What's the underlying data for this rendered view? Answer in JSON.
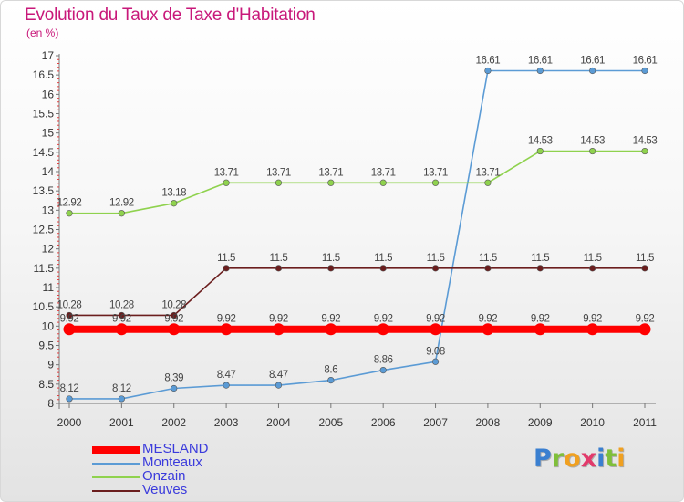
{
  "header": {
    "title": "Evolution du Taux de Taxe d'Habitation",
    "subtitle": "(en %)"
  },
  "chart_data": {
    "type": "line",
    "x": [
      "2000",
      "2001",
      "2002",
      "2003",
      "2004",
      "2005",
      "2006",
      "2007",
      "2008",
      "2009",
      "2010",
      "2011"
    ],
    "ylim": [
      8,
      17
    ],
    "yticks": [
      8,
      8.5,
      9,
      9.5,
      10,
      10.5,
      11,
      11.5,
      12,
      12.5,
      13,
      13.5,
      14,
      14.5,
      15,
      15.5,
      16,
      16.5,
      17
    ],
    "ytick_labels": [
      "8",
      "8.5",
      "9",
      "9.5",
      "10",
      "10.5",
      "11",
      "11.5",
      "12",
      "12.5",
      "13",
      "13.5",
      "14",
      "14.5",
      "15",
      "15.5",
      "16",
      "16.5",
      "17"
    ],
    "grid": false,
    "legend_position": "bottom-left",
    "series": [
      {
        "name": "MESLAND",
        "color": "#ff0000",
        "thick": true,
        "values": [
          9.92,
          9.92,
          9.92,
          9.92,
          9.92,
          9.92,
          9.92,
          9.92,
          9.92,
          9.92,
          9.92,
          9.92
        ],
        "labels": [
          "9.92",
          "9.92",
          "9.92",
          "9.92",
          "9.92",
          "9.92",
          "9.92",
          "9.92",
          "9.92",
          "9.92",
          "9.92",
          "9.92"
        ]
      },
      {
        "name": "Monteaux",
        "color": "#5b9bd5",
        "thick": false,
        "values": [
          8.12,
          8.12,
          8.39,
          8.47,
          8.47,
          8.6,
          8.86,
          9.08,
          16.61,
          16.61,
          16.61,
          16.61
        ],
        "labels": [
          "8.12",
          "8.12",
          "8.39",
          "8.47",
          "8.47",
          "8.6",
          "8.86",
          "9.08",
          "16.61",
          "16.61",
          "16.61",
          "16.61"
        ]
      },
      {
        "name": "Onzain",
        "color": "#8fd24e",
        "thick": false,
        "values": [
          12.92,
          12.92,
          13.18,
          13.71,
          13.71,
          13.71,
          13.71,
          13.71,
          13.71,
          14.53,
          14.53,
          14.53
        ],
        "labels": [
          "12.92",
          "12.92",
          "13.18",
          "13.71",
          "13.71",
          "13.71",
          "13.71",
          "13.71",
          "13.71",
          "14.53",
          "14.53",
          "14.53"
        ]
      },
      {
        "name": "Veuves",
        "color": "#6b1e1e",
        "thick": false,
        "values": [
          10.28,
          10.28,
          10.28,
          11.5,
          11.5,
          11.5,
          11.5,
          11.5,
          11.5,
          11.5,
          11.5,
          11.5
        ],
        "labels": [
          "10.28",
          "10.28",
          "10.28",
          "11.5",
          "11.5",
          "11.5",
          "11.5",
          "11.5",
          "11.5",
          "11.5",
          "11.5",
          "11.5"
        ]
      }
    ]
  },
  "legend": {
    "items": [
      {
        "label": "MESLAND",
        "color": "#ff0000",
        "thick": true
      },
      {
        "label": "Monteaux",
        "color": "#5b9bd5",
        "thick": false
      },
      {
        "label": "Onzain",
        "color": "#8fd24e",
        "thick": false
      },
      {
        "label": "Veuves",
        "color": "#6b1e1e",
        "thick": false
      }
    ],
    "text_color": "#3b3bdc"
  },
  "logo": {
    "text": "Proxiti",
    "letters": [
      {
        "ch": "P",
        "color": "#3a7fd0"
      },
      {
        "ch": "r",
        "color": "#7fbf3a"
      },
      {
        "ch": "o",
        "color": "#f0a020"
      },
      {
        "ch": "x",
        "color": "#e23a6b"
      },
      {
        "ch": "i",
        "color": "#3a7fd0"
      },
      {
        "ch": "t",
        "color": "#7fbf3a"
      },
      {
        "ch": "i",
        "color": "#f0a020"
      }
    ]
  }
}
